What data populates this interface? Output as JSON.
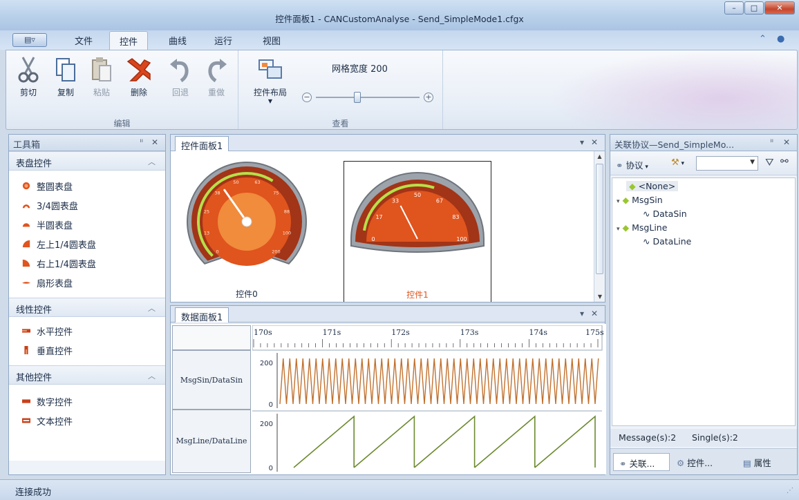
{
  "window": {
    "title": "控件面板1 - CANCustomAnalyse - Send_SimpleMode1.cfgx",
    "minimize": "–",
    "maximize": "□",
    "close": "✕"
  },
  "menu": {
    "app_button": "▤▿",
    "tabs": [
      "文件",
      "控件",
      "曲线",
      "运行",
      "视图"
    ],
    "active_tab": "控件"
  },
  "ribbon": {
    "edit_group": {
      "label": "编辑",
      "buttons": [
        "剪切",
        "复制",
        "粘贴",
        "删除",
        "回退",
        "重做"
      ]
    },
    "view_group": {
      "label": "查看",
      "layout_button": "控件布局",
      "grid_width_label": "网格宽度 200",
      "zoom_out": "−",
      "zoom_in": "+"
    }
  },
  "toolbox": {
    "title": "工具箱",
    "pin": "ᴵᴵ",
    "close": "✕",
    "sections": [
      {
        "title": "表盘控件",
        "items": [
          "整圆表盘",
          "3/4圆表盘",
          "半圆表盘",
          "左上1/4圆表盘",
          "右上1/4圆表盘",
          "扇形表盘"
        ]
      },
      {
        "title": "线性控件",
        "items": [
          "水平控件",
          "垂直控件"
        ]
      },
      {
        "title": "其他控件",
        "items": [
          "数字控件",
          "文本控件"
        ]
      }
    ]
  },
  "control_panel": {
    "tab": "控件面板1",
    "gauges": [
      {
        "label": "控件0",
        "ticks": [
          "0",
          "13",
          "25",
          "38",
          "50",
          "63",
          "75",
          "88",
          "100"
        ],
        "end_tick": "200",
        "value_fraction": 0.37
      },
      {
        "label": "控件1",
        "ticks": [
          "0",
          "17",
          "33",
          "50",
          "67",
          "83",
          "100"
        ],
        "value_fraction": 0.35
      }
    ]
  },
  "data_panel": {
    "tab": "数据面板1",
    "time_ticks": [
      "170s",
      "171s",
      "172s",
      "173s",
      "174s",
      "175s"
    ],
    "rows": [
      {
        "label": "MsgSin/DataSin",
        "y_ticks": [
          "200",
          "0"
        ]
      },
      {
        "label": "MsgLine/DataLine",
        "y_ticks": [
          "200",
          "0"
        ]
      }
    ]
  },
  "protocol_panel": {
    "title": "关联协议—Send_SimpleMo...",
    "toolbar": {
      "protocol_label": "协议",
      "filter_value": ""
    },
    "tree": [
      {
        "label": "<None>",
        "level": 0
      },
      {
        "label": "MsgSin",
        "level": 0
      },
      {
        "label": "DataSin",
        "level": 1
      },
      {
        "label": "MsgLine",
        "level": 0
      },
      {
        "label": "DataLine",
        "level": 1
      }
    ],
    "counts": {
      "messages": "Message(s):2",
      "singles": "Single(s):2"
    },
    "bottom_tabs": [
      "关联...",
      "控件...",
      "属性"
    ]
  },
  "status": {
    "text": "连接成功"
  },
  "colors": {
    "sin_wave": "#c0702e",
    "line_wave": "#6b8a2e",
    "gauge_accent": "#e0541e"
  }
}
